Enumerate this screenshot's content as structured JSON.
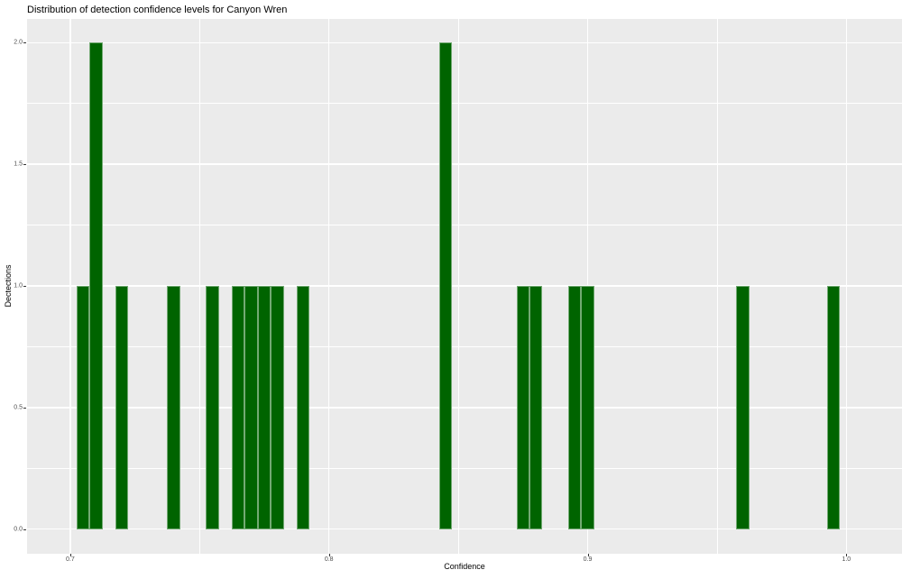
{
  "page": {
    "background": "#ffffff"
  },
  "chart_data": {
    "type": "histogram",
    "title": "Distribution of detection confidence levels for Canyon Wren",
    "xlabel": "Confidence",
    "ylabel": "Dectections",
    "bar_fill": "#006400",
    "panel_bg": "#ebebeb",
    "grid_color": "#ffffff",
    "tick_label_color": "#4d4d4d",
    "legend": "none",
    "binwidth": 0.005,
    "x_domain": [
      0.6833,
      1.0215
    ],
    "y_domain": [
      -0.1,
      2.1
    ],
    "x_ticks": [
      0.7,
      0.8,
      0.9,
      1.0
    ],
    "x_tick_labels": [
      "0.7",
      "0.8",
      "0.9",
      "1.0"
    ],
    "x_minor": [
      0.75,
      0.85,
      0.95
    ],
    "y_ticks": [
      0.0,
      0.5,
      1.0,
      1.5,
      2.0
    ],
    "y_tick_labels": [
      "0.0",
      "0.5",
      "1.0",
      "1.5",
      "2.0"
    ],
    "y_minor": [
      0.25,
      0.75,
      1.25,
      1.75
    ],
    "bins": [
      {
        "x": 0.705,
        "count": 1
      },
      {
        "x": 0.71,
        "count": 2
      },
      {
        "x": 0.72,
        "count": 1
      },
      {
        "x": 0.74,
        "count": 1
      },
      {
        "x": 0.755,
        "count": 1
      },
      {
        "x": 0.765,
        "count": 1
      },
      {
        "x": 0.77,
        "count": 1
      },
      {
        "x": 0.775,
        "count": 1
      },
      {
        "x": 0.78,
        "count": 1
      },
      {
        "x": 0.79,
        "count": 1
      },
      {
        "x": 0.845,
        "count": 2
      },
      {
        "x": 0.875,
        "count": 1
      },
      {
        "x": 0.88,
        "count": 1
      },
      {
        "x": 0.895,
        "count": 1
      },
      {
        "x": 0.9,
        "count": 1
      },
      {
        "x": 0.96,
        "count": 1
      },
      {
        "x": 0.995,
        "count": 1
      }
    ]
  }
}
